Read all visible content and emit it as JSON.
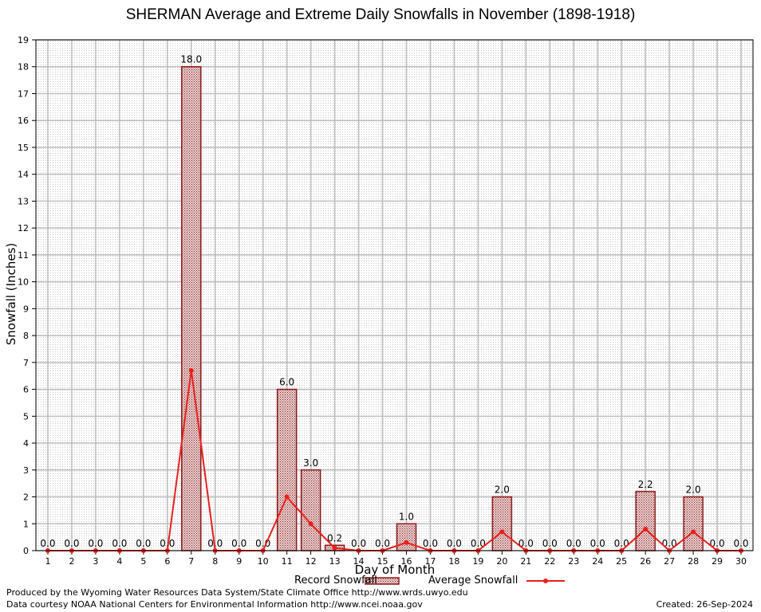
{
  "chart_data": {
    "type": "bar",
    "title": "SHERMAN Average and Extreme Daily Snowfalls in November (1898-1918)",
    "xlabel": "Day of Month",
    "ylabel": "Snowfall (Inches)",
    "ylim": [
      0,
      19
    ],
    "grid": true,
    "legend_position": "bottom",
    "categories": [
      1,
      2,
      3,
      4,
      5,
      6,
      7,
      8,
      9,
      10,
      11,
      12,
      13,
      14,
      15,
      16,
      17,
      18,
      19,
      20,
      21,
      22,
      23,
      24,
      25,
      26,
      27,
      28,
      29,
      30
    ],
    "series": [
      {
        "name": "Record Snowfall",
        "type": "bar",
        "color": "#8b1a1a",
        "values": [
          0.0,
          0.0,
          0.0,
          0.0,
          0.0,
          0.0,
          18.0,
          0.0,
          0.0,
          0.0,
          6.0,
          3.0,
          0.2,
          0.0,
          0.0,
          1.0,
          0.0,
          0.0,
          0.0,
          2.0,
          0.0,
          0.0,
          0.0,
          0.0,
          0.0,
          2.2,
          0.0,
          2.0,
          0.0,
          0.0
        ],
        "labels": [
          "0.0",
          "0.0",
          "0.0",
          "0.0",
          "0.0",
          "0.0",
          "18.0",
          "0.0",
          "0.0",
          "0.0",
          "6.0",
          "3.0",
          "0.2",
          "0.0",
          "0.0",
          "1.0",
          "0.0",
          "0.0",
          "0.0",
          "2.0",
          "0.0",
          "0.0",
          "0.0",
          "0.0",
          "0.0",
          "2.2",
          "0.0",
          "2.0",
          "0.0",
          "0.0"
        ]
      },
      {
        "name": "Average Snowfall",
        "type": "line",
        "color": "#e8201c",
        "values": [
          0,
          0,
          0,
          0,
          0,
          0,
          6.7,
          0,
          0,
          0,
          2.0,
          1.0,
          0.1,
          0,
          0,
          0.3,
          0,
          0,
          0,
          0.7,
          0,
          0,
          0,
          0,
          0,
          0.8,
          0,
          0.7,
          0,
          0
        ]
      }
    ]
  },
  "footer": {
    "line1": "Produced by the Wyoming Water Resources Data System/State Climate Office http://www.wrds.uwyo.edu",
    "line2": "Data courtesy NOAA National Centers for Environmental Information http://www.ncei.noaa.gov",
    "created": "Created:  26-Sep-2024"
  }
}
